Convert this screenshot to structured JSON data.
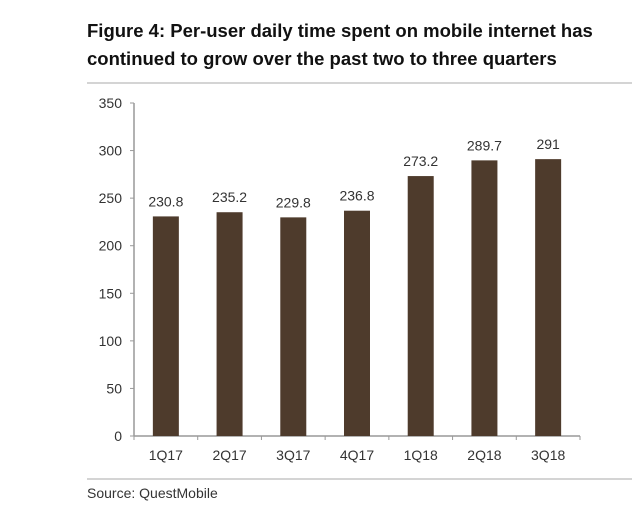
{
  "chart_data": {
    "type": "bar",
    "title": "Figure 4: Per-user daily time spent on mobile internet has continued to grow over the past two to three quarters",
    "xlabel": "",
    "ylabel": "",
    "categories": [
      "1Q17",
      "2Q17",
      "3Q17",
      "4Q17",
      "1Q18",
      "2Q18",
      "3Q18"
    ],
    "values": [
      230.8,
      235.2,
      229.8,
      236.8,
      273.2,
      289.7,
      291
    ],
    "data_labels": [
      "230.8",
      "235.2",
      "229.8",
      "236.8",
      "273.2",
      "289.7",
      "291"
    ],
    "ylim": [
      0,
      350
    ],
    "yticks": [
      0,
      50,
      100,
      150,
      200,
      250,
      300,
      350
    ],
    "grid": false,
    "legend": "none",
    "bar_color": "#4e3b2c"
  },
  "source": "Source:  QuestMobile"
}
